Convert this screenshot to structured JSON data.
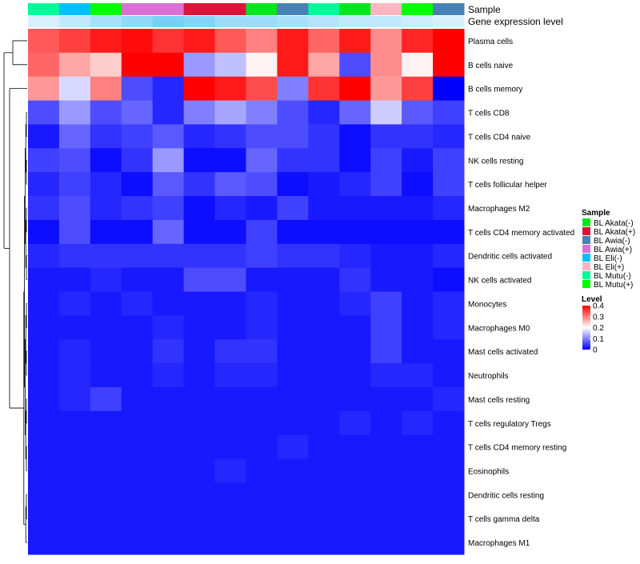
{
  "chart_data": {
    "type": "heatmap",
    "annotation_labels": {
      "sample": "Sample",
      "gene_expression": "Gene expression level"
    },
    "rows": [
      "Plasma cells",
      "B cells naive",
      "B cells memory",
      "T cells CD8",
      "T cells CD4 naive",
      "NK cells resting",
      "T cells follicular helper",
      "Macrophages M2",
      "T cells CD4 memory activated",
      "Dendritic cells activated",
      "NK cells activated",
      "Monocytes",
      "Macrophages M0",
      "Mast cells activated",
      "Neutrophils",
      "Mast cells resting",
      "T cells regulatory  Tregs",
      "T cells CD4 memory resting",
      "Eosinophils",
      "Dendritic cells resting",
      "T cells gamma delta",
      "Macrophages M1"
    ],
    "column_samples": [
      "BL Mutu(-)",
      "BL Eli(-)",
      "BL Mutu(+)",
      "BL Awia(+)",
      "BL Awia(+)",
      "BL Akata(+)",
      "BL Akata(+)",
      "BL Akata(-)",
      "BL Awia(-)",
      "BL Mutu(-)",
      "BL Akata(-)",
      "BL Eli(+)",
      "BL Mutu(+)",
      "BL Awia(-)"
    ],
    "column_expression_level": [
      0.1,
      0.12,
      0.14,
      0.16,
      0.18,
      0.17,
      0.15,
      0.15,
      0.14,
      0.13,
      0.12,
      0.12,
      0.11,
      0.1
    ],
    "values": [
      [
        0.33,
        0.35,
        0.38,
        0.39,
        0.36,
        0.38,
        0.33,
        0.3,
        0.38,
        0.32,
        0.38,
        0.29,
        0.37,
        0.4
      ],
      [
        0.32,
        0.27,
        0.24,
        0.4,
        0.4,
        0.12,
        0.15,
        0.21,
        0.38,
        0.27,
        0.06,
        0.29,
        0.21,
        0.4
      ],
      [
        0.28,
        0.17,
        0.3,
        0.06,
        0.03,
        0.4,
        0.38,
        0.34,
        0.1,
        0.36,
        0.4,
        0.28,
        0.35,
        0.0
      ],
      [
        0.06,
        0.12,
        0.06,
        0.08,
        0.03,
        0.1,
        0.13,
        0.1,
        0.06,
        0.03,
        0.08,
        0.16,
        0.07,
        0.05
      ],
      [
        0.02,
        0.08,
        0.04,
        0.05,
        0.07,
        0.03,
        0.04,
        0.06,
        0.06,
        0.04,
        0.01,
        0.04,
        0.04,
        0.03
      ],
      [
        0.05,
        0.06,
        0.01,
        0.04,
        0.12,
        0.01,
        0.01,
        0.08,
        0.04,
        0.04,
        0.01,
        0.05,
        0.02,
        0.05
      ],
      [
        0.03,
        0.05,
        0.03,
        0.01,
        0.07,
        0.04,
        0.07,
        0.06,
        0.01,
        0.02,
        0.03,
        0.05,
        0.01,
        0.05
      ],
      [
        0.04,
        0.06,
        0.03,
        0.04,
        0.05,
        0.01,
        0.03,
        0.02,
        0.05,
        0.02,
        0.02,
        0.02,
        0.02,
        0.03
      ],
      [
        0.01,
        0.06,
        0.01,
        0.01,
        0.08,
        0.01,
        0.01,
        0.05,
        0.01,
        0.01,
        0.01,
        0.01,
        0.01,
        0.01
      ],
      [
        0.03,
        0.04,
        0.04,
        0.04,
        0.04,
        0.04,
        0.04,
        0.05,
        0.04,
        0.04,
        0.03,
        0.02,
        0.02,
        0.03
      ],
      [
        0.02,
        0.02,
        0.03,
        0.02,
        0.02,
        0.06,
        0.06,
        0.02,
        0.02,
        0.02,
        0.04,
        0.02,
        0.02,
        0.01
      ],
      [
        0.02,
        0.03,
        0.02,
        0.03,
        0.02,
        0.02,
        0.02,
        0.03,
        0.02,
        0.02,
        0.03,
        0.05,
        0.02,
        0.03
      ],
      [
        0.02,
        0.02,
        0.02,
        0.02,
        0.03,
        0.02,
        0.02,
        0.03,
        0.02,
        0.02,
        0.02,
        0.05,
        0.02,
        0.03
      ],
      [
        0.02,
        0.03,
        0.02,
        0.02,
        0.04,
        0.02,
        0.04,
        0.04,
        0.02,
        0.02,
        0.02,
        0.05,
        0.02,
        0.02
      ],
      [
        0.02,
        0.03,
        0.02,
        0.02,
        0.03,
        0.02,
        0.03,
        0.03,
        0.02,
        0.02,
        0.02,
        0.03,
        0.03,
        0.02
      ],
      [
        0.02,
        0.03,
        0.05,
        0.02,
        0.02,
        0.02,
        0.02,
        0.02,
        0.02,
        0.02,
        0.02,
        0.02,
        0.02,
        0.03
      ],
      [
        0.02,
        0.02,
        0.02,
        0.02,
        0.02,
        0.02,
        0.02,
        0.02,
        0.02,
        0.02,
        0.03,
        0.02,
        0.03,
        0.02
      ],
      [
        0.02,
        0.02,
        0.02,
        0.02,
        0.02,
        0.02,
        0.02,
        0.02,
        0.03,
        0.02,
        0.02,
        0.02,
        0.02,
        0.02
      ],
      [
        0.02,
        0.02,
        0.02,
        0.02,
        0.02,
        0.02,
        0.03,
        0.02,
        0.02,
        0.02,
        0.02,
        0.02,
        0.02,
        0.02
      ],
      [
        0.02,
        0.02,
        0.02,
        0.02,
        0.02,
        0.02,
        0.02,
        0.02,
        0.02,
        0.02,
        0.02,
        0.02,
        0.02,
        0.02
      ],
      [
        0.02,
        0.02,
        0.02,
        0.02,
        0.02,
        0.02,
        0.02,
        0.02,
        0.02,
        0.02,
        0.02,
        0.02,
        0.02,
        0.02
      ],
      [
        0.02,
        0.02,
        0.02,
        0.02,
        0.02,
        0.02,
        0.02,
        0.02,
        0.02,
        0.02,
        0.02,
        0.02,
        0.02,
        0.02
      ]
    ],
    "color_scale": {
      "title": "Level",
      "range": [
        0,
        0.4
      ],
      "ticks": [
        "0.4",
        "0.3",
        "0.2",
        "0.1",
        "0"
      ],
      "tick_values": [
        0.4,
        0.3,
        0.2,
        0.1,
        0
      ],
      "low_color": "#0000ff",
      "mid_color": "#ffffff",
      "high_color": "#ff0000"
    },
    "legend": {
      "title": "Sample",
      "items": [
        {
          "name": "BL Akata(-)",
          "color": "#00e61e"
        },
        {
          "name": "BL Akata(+)",
          "color": "#dc143c"
        },
        {
          "name": "BL Awia(-)",
          "color": "#4682b4"
        },
        {
          "name": "BL Awia(+)",
          "color": "#da70d6"
        },
        {
          "name": "BL Eli(-)",
          "color": "#00bfff"
        },
        {
          "name": "BL Eli(+)",
          "color": "#ffb6c1"
        },
        {
          "name": "BL Mutu(-)",
          "color": "#00fa9a"
        },
        {
          "name": "BL Mutu(+)",
          "color": "#00ff00"
        }
      ]
    },
    "dendrogram": "row"
  }
}
